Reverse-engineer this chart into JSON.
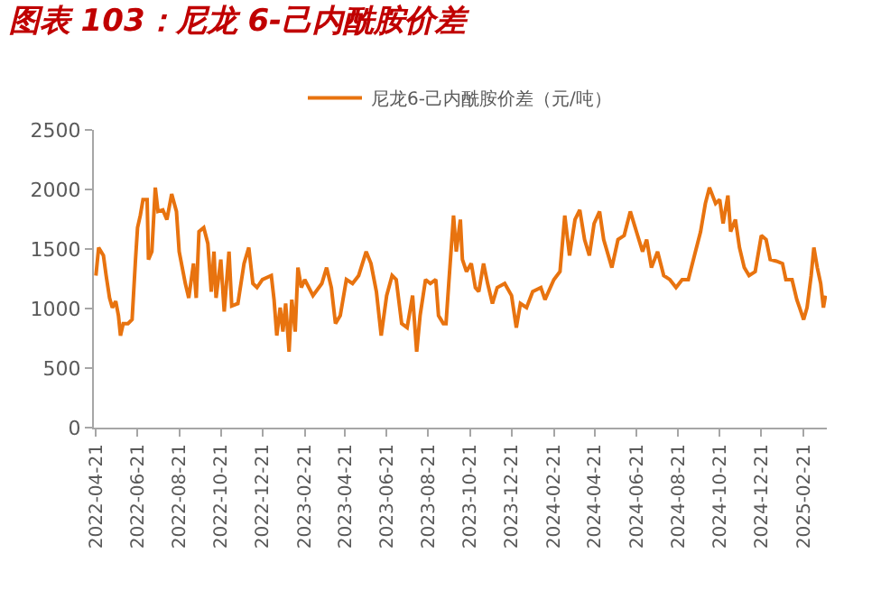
{
  "chart_data": {
    "type": "line",
    "title": "图表 103：尼龙 6-己内酰胺价差",
    "x": [
      "2022-04-21",
      "2022-04-25",
      "2022-05-02",
      "2022-05-06",
      "2022-05-11",
      "2022-05-15",
      "2022-05-20",
      "2022-05-24",
      "2022-05-27",
      "2022-05-31",
      "2022-06-07",
      "2022-06-13",
      "2022-06-18",
      "2022-06-21",
      "2022-06-25",
      "2022-06-29",
      "2022-07-05",
      "2022-07-07",
      "2022-07-12",
      "2022-07-17",
      "2022-07-21",
      "2022-07-28",
      "2022-08-03",
      "2022-08-10",
      "2022-08-17",
      "2022-08-21",
      "2022-08-30",
      "2022-09-04",
      "2022-09-11",
      "2022-09-15",
      "2022-09-19",
      "2022-09-26",
      "2022-10-02",
      "2022-10-07",
      "2022-10-11",
      "2022-10-14",
      "2022-10-21",
      "2022-10-26",
      "2022-11-02",
      "2022-11-06",
      "2022-11-15",
      "2022-11-24",
      "2022-12-01",
      "2022-12-07",
      "2022-12-13",
      "2022-12-21",
      "2023-01-03",
      "2023-01-07",
      "2023-01-11",
      "2023-01-16",
      "2023-01-20",
      "2023-01-24",
      "2023-01-29",
      "2023-02-02",
      "2023-02-07",
      "2023-02-11",
      "2023-02-16",
      "2023-02-21",
      "2023-03-05",
      "2023-03-18",
      "2023-03-25",
      "2023-04-01",
      "2023-04-07",
      "2023-04-14",
      "2023-04-23",
      "2023-05-02",
      "2023-05-11",
      "2023-05-22",
      "2023-05-29",
      "2023-06-06",
      "2023-06-13",
      "2023-06-21",
      "2023-06-29",
      "2023-07-05",
      "2023-07-13",
      "2023-07-21",
      "2023-07-29",
      "2023-08-04",
      "2023-08-09",
      "2023-08-17",
      "2023-08-24",
      "2023-09-01",
      "2023-09-05",
      "2023-09-12",
      "2023-09-16",
      "2023-09-20",
      "2023-09-27",
      "2023-10-01",
      "2023-10-07",
      "2023-10-10",
      "2023-10-16",
      "2023-10-23",
      "2023-10-29",
      "2023-11-03",
      "2023-11-10",
      "2023-11-16",
      "2023-11-23",
      "2023-11-30",
      "2023-12-11",
      "2023-12-21",
      "2023-12-28",
      "2024-01-03",
      "2024-01-12",
      "2024-01-21",
      "2024-02-02",
      "2024-02-08",
      "2024-02-21",
      "2024-03-01",
      "2024-03-08",
      "2024-03-15",
      "2024-03-23",
      "2024-03-30",
      "2024-04-06",
      "2024-04-13",
      "2024-04-20",
      "2024-04-28",
      "2024-05-04",
      "2024-05-16",
      "2024-05-25",
      "2024-06-03",
      "2024-06-12",
      "2024-06-21",
      "2024-06-30",
      "2024-07-06",
      "2024-07-13",
      "2024-07-22",
      "2024-07-31",
      "2024-08-09",
      "2024-08-18",
      "2024-08-27",
      "2024-09-05",
      "2024-09-14",
      "2024-09-23",
      "2024-09-30",
      "2024-10-06",
      "2024-10-15",
      "2024-10-21",
      "2024-10-26",
      "2024-11-02",
      "2024-11-06",
      "2024-11-13",
      "2024-11-19",
      "2024-11-26",
      "2024-12-03",
      "2024-12-12",
      "2024-12-21",
      "2024-12-28",
      "2025-01-03",
      "2025-01-12",
      "2025-01-21",
      "2025-01-26",
      "2025-02-04",
      "2025-02-11",
      "2025-02-15",
      "2025-02-21",
      "2025-02-26",
      "2025-03-04",
      "2025-03-08",
      "2025-03-13",
      "2025-03-18",
      "2025-03-22",
      "2025-03-25"
    ],
    "series": [
      {
        "name": "尼龙6-己内酰胺价差（元/吨）",
        "color": "#e8730f",
        "values": [
          1277,
          1512,
          1445,
          1277,
          1089,
          1008,
          1062,
          941,
          773,
          874,
          874,
          908,
          1411,
          1680,
          1781,
          1915,
          1915,
          1411,
          1478,
          2016,
          1815,
          1828,
          1747,
          1962,
          1815,
          1478,
          1210,
          1089,
          1378,
          1089,
          1646,
          1680,
          1546,
          1142,
          1478,
          1089,
          1411,
          974,
          1478,
          1022,
          1042,
          1378,
          1512,
          1210,
          1176,
          1243,
          1277,
          1075,
          773,
          1008,
          806,
          1042,
          638,
          1075,
          806,
          1344,
          1176,
          1243,
          1109,
          1210,
          1344,
          1176,
          874,
          941,
          1243,
          1210,
          1277,
          1478,
          1378,
          1142,
          773,
          1109,
          1277,
          1243,
          874,
          840,
          1109,
          638,
          941,
          1243,
          1210,
          1243,
          941,
          874,
          874,
          1210,
          1781,
          1478,
          1747,
          1411,
          1310,
          1378,
          1176,
          1142,
          1378,
          1210,
          1042,
          1176,
          1210,
          1109,
          840,
          1042,
          1008,
          1142,
          1176,
          1075,
          1243,
          1310,
          1781,
          1445,
          1747,
          1828,
          1579,
          1445,
          1714,
          1815,
          1579,
          1344,
          1579,
          1613,
          1815,
          1646,
          1478,
          1579,
          1344,
          1478,
          1277,
          1243,
          1176,
          1243,
          1243,
          1445,
          1646,
          1882,
          2016,
          1882,
          1915,
          1714,
          1949,
          1646,
          1747,
          1512,
          1344,
          1277,
          1310,
          1613,
          1579,
          1411,
          1398,
          1378,
          1243,
          1243,
          1075,
          1008,
          907,
          1008,
          1277,
          1512,
          1344,
          1210,
          1008,
          1109
        ]
      }
    ],
    "xlim": [
      "2022-04-18",
      "2025-03-27"
    ],
    "xticks": [
      {
        "value": "2022-04-21",
        "label": "2022-04-21"
      },
      {
        "value": "2022-06-21",
        "label": "2022-06-21"
      },
      {
        "value": "2022-08-21",
        "label": "2022-08-21"
      },
      {
        "value": "2022-10-21",
        "label": "2022-10-21"
      },
      {
        "value": "2022-12-21",
        "label": "2022-12-21"
      },
      {
        "value": "2023-02-21",
        "label": "2023-02-21"
      },
      {
        "value": "2023-04-21",
        "label": "2023-04-21"
      },
      {
        "value": "2023-06-21",
        "label": "2023-06-21"
      },
      {
        "value": "2023-08-21",
        "label": "2023-08-21"
      },
      {
        "value": "2023-10-21",
        "label": "2023-10-21"
      },
      {
        "value": "2023-12-21",
        "label": "2023-12-21"
      },
      {
        "value": "2024-02-21",
        "label": "2024-02-21"
      },
      {
        "value": "2024-04-21",
        "label": "2024-04-21"
      },
      {
        "value": "2024-06-21",
        "label": "2024-06-21"
      },
      {
        "value": "2024-08-21",
        "label": "2024-08-21"
      },
      {
        "value": "2024-10-21",
        "label": "2024-10-21"
      },
      {
        "value": "2024-12-21",
        "label": "2024-12-21"
      },
      {
        "value": "2025-02-21",
        "label": "2025-02-21"
      }
    ],
    "ylim": [
      0,
      2500
    ],
    "yticks": [
      0,
      500,
      1000,
      1500,
      2000,
      2500
    ],
    "grid": false,
    "legend": "top",
    "line_style": "solid",
    "marker": "none"
  }
}
